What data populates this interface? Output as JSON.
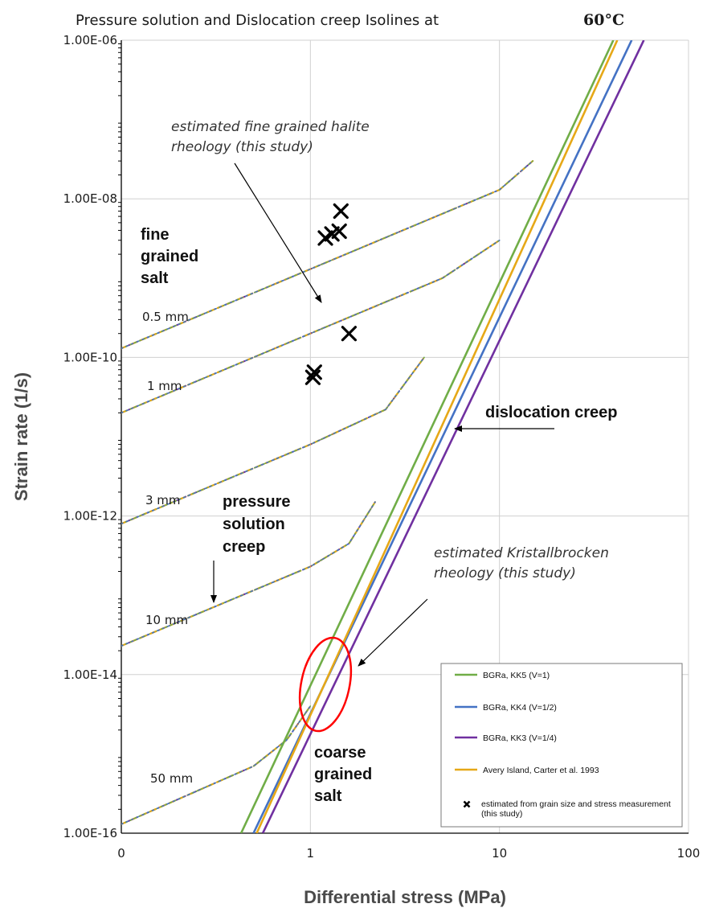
{
  "chart_data": {
    "type": "line",
    "title": "Pressure solution and Dislocation creep Isolines at",
    "title_temperature": "60°C",
    "xlabel": "Differential stress (MPa)",
    "ylabel": "Strain rate (1/s)",
    "x_scale": "log",
    "y_scale": "log",
    "xlim": [
      0.1,
      100
    ],
    "ylim": [
      1e-16,
      1e-06
    ],
    "x_tick_labels": [
      "0",
      "1",
      "10",
      "100"
    ],
    "y_tick_labels": [
      "1.00E-16",
      "1.00E-14",
      "1.00E-12",
      "1.00E-10",
      "1.00E-08",
      "1.00E-06"
    ],
    "grid": true,
    "legend_position": "bottom-right",
    "series": [
      {
        "name": "BGRa, KK5 (V=1)",
        "color": "#70ad47",
        "x": [
          0.43,
          40
        ],
        "y": [
          1e-16,
          1e-06
        ]
      },
      {
        "name": "BGRa, KK4 (V=1/2)",
        "color": "#4472c4",
        "x": [
          0.5,
          50
        ],
        "y": [
          1e-16,
          1e-06
        ]
      },
      {
        "name": "BGRa, KK3 (V=1/4)",
        "color": "#7030a0",
        "x": [
          0.56,
          58
        ],
        "y": [
          1e-16,
          1e-06
        ]
      },
      {
        "name": "Avery Island, Carter et al. 1993",
        "color": "#e6a817",
        "x": [
          0.52,
          42
        ],
        "y": [
          1e-16,
          1e-06
        ]
      }
    ],
    "pressure_solution_isolines": [
      {
        "label": "0.5 mm",
        "x": [
          0.1,
          1,
          10,
          15
        ],
        "y": [
          1.3e-10,
          1.3e-09,
          1.3e-08,
          3e-08
        ]
      },
      {
        "label": "1 mm",
        "x": [
          0.1,
          1,
          5,
          10
        ],
        "y": [
          2e-11,
          2e-10,
          1e-09,
          3e-09
        ]
      },
      {
        "label": "3 mm",
        "x": [
          0.1,
          1,
          2.5,
          4
        ],
        "y": [
          8e-13,
          8e-12,
          2.2e-11,
          1e-10
        ]
      },
      {
        "label": "10 mm",
        "x": [
          0.1,
          1,
          1.6,
          2.2
        ],
        "y": [
          2.3e-14,
          2.3e-13,
          4.5e-13,
          1.5e-12
        ]
      },
      {
        "label": "50 mm",
        "x": [
          0.1,
          0.5,
          0.75,
          1
        ],
        "y": [
          1.3e-16,
          7e-16,
          1.5e-15,
          4e-15
        ]
      }
    ],
    "measurements": {
      "name": "estimated from grain size and stress measurement (this study)",
      "x": [
        1.45,
        1.2,
        1.3,
        1.42,
        1.6,
        1.05,
        1.03
      ],
      "y": [
        7e-09,
        3.2e-09,
        3.6e-09,
        3.9e-09,
        2e-10,
        6.5e-11,
        5.6e-11
      ]
    },
    "annotations": [
      "fine",
      "grained",
      "salt",
      "coarse",
      "grained",
      "salt",
      "pressure",
      "solution",
      "creep",
      "dislocation creep",
      "estimated fine grained halite",
      "rheology (this study)",
      "estimated Kristallbrocken",
      "rheology (this study)"
    ],
    "grain_size_labels": [
      "0.5 mm",
      "1 mm",
      "3 mm",
      "10 mm",
      "50 mm"
    ]
  }
}
